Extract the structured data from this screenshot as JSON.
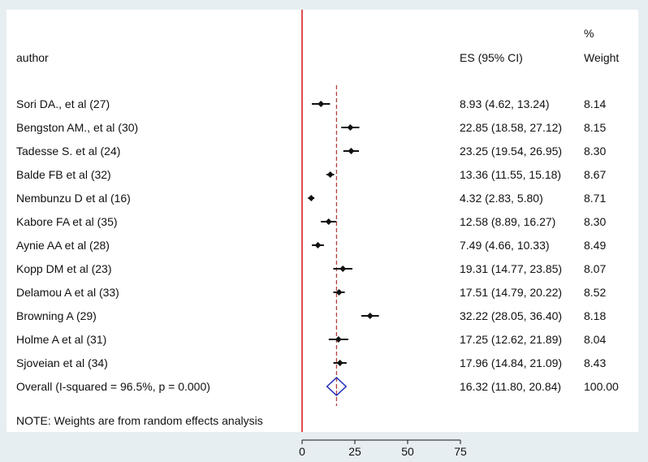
{
  "chart_data": {
    "type": "forest",
    "columns": {
      "author": "author",
      "es": "ES (95% CI)",
      "weight_top": "%",
      "weight": "Weight"
    },
    "studies": [
      {
        "author": "Sori DA., et al (27)",
        "es": 8.93,
        "lo": 4.62,
        "hi": 13.24,
        "es_text": "8.93 (4.62, 13.24)",
        "weight": "8.14"
      },
      {
        "author": "Bengston AM., et al (30)",
        "es": 22.85,
        "lo": 18.58,
        "hi": 27.12,
        "es_text": "22.85 (18.58, 27.12)",
        "weight": "8.15"
      },
      {
        "author": "Tadesse S. et al (24)",
        "es": 23.25,
        "lo": 19.54,
        "hi": 26.95,
        "es_text": "23.25 (19.54, 26.95)",
        "weight": "8.30"
      },
      {
        "author": "Balde FB et al (32)",
        "es": 13.36,
        "lo": 11.55,
        "hi": 15.18,
        "es_text": "13.36 (11.55, 15.18)",
        "weight": "8.67"
      },
      {
        "author": "Nembunzu D et al (16)",
        "es": 4.32,
        "lo": 2.83,
        "hi": 5.8,
        "es_text": "4.32 (2.83, 5.80)",
        "weight": "8.71"
      },
      {
        "author": "Kabore FA et al (35)",
        "es": 12.58,
        "lo": 8.89,
        "hi": 16.27,
        "es_text": "12.58 (8.89, 16.27)",
        "weight": "8.30"
      },
      {
        "author": "Aynie AA et al (28)",
        "es": 7.49,
        "lo": 4.66,
        "hi": 10.33,
        "es_text": "7.49 (4.66, 10.33)",
        "weight": "8.49"
      },
      {
        "author": "Kopp DM et al (23)",
        "es": 19.31,
        "lo": 14.77,
        "hi": 23.85,
        "es_text": "19.31 (14.77, 23.85)",
        "weight": "8.07"
      },
      {
        "author": "Delamou A et al (33)",
        "es": 17.51,
        "lo": 14.79,
        "hi": 20.22,
        "es_text": "17.51 (14.79, 20.22)",
        "weight": "8.52"
      },
      {
        "author": "Browning A (29)",
        "es": 32.22,
        "lo": 28.05,
        "hi": 36.4,
        "es_text": "32.22 (28.05, 36.40)",
        "weight": "8.18"
      },
      {
        "author": "Holme A et al (31)",
        "es": 17.25,
        "lo": 12.62,
        "hi": 21.89,
        "es_text": "17.25 (12.62, 21.89)",
        "weight": "8.04"
      },
      {
        "author": "Sjoveian et al (34)",
        "es": 17.96,
        "lo": 14.84,
        "hi": 21.09,
        "es_text": "17.96 (14.84, 21.09)",
        "weight": "8.43"
      }
    ],
    "overall": {
      "label": "Overall  (I-squared = 96.5%, p = 0.000)",
      "es": 16.32,
      "lo": 11.8,
      "hi": 20.84,
      "es_text": "16.32 (11.80, 20.84)",
      "weight": "100.00"
    },
    "note": "NOTE: Weights are from random effects analysis",
    "x_ticks": [
      0,
      25,
      50,
      75
    ],
    "x_tick_labels": [
      "0",
      "25",
      "50",
      "75"
    ],
    "xlim": [
      0,
      75
    ],
    "null_line": 0,
    "colors": {
      "background": "#e7eef2",
      "panel": "#ffffff",
      "null_line": "#d81f26",
      "overall_line": "#b0413e",
      "diamond": "#1f2bb8",
      "ink": "#111111"
    }
  }
}
